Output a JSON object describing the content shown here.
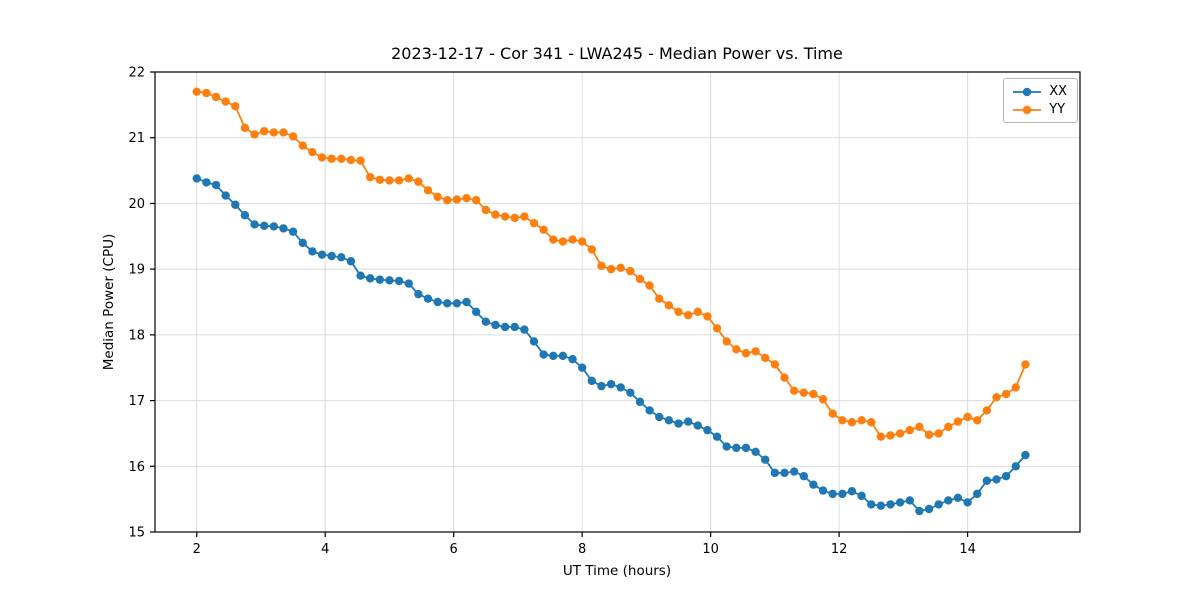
{
  "chart_data": {
    "type": "line",
    "title": "2023-12-17 - Cor 341 - LWA245 - Median Power vs. Time",
    "xlabel": "UT Time (hours)",
    "ylabel": "Median Power (CPU)",
    "xlim": [
      1.35,
      15.75
    ],
    "ylim": [
      15,
      22
    ],
    "xticks": [
      2,
      4,
      6,
      8,
      10,
      12,
      14
    ],
    "yticks": [
      15,
      16,
      17,
      18,
      19,
      20,
      21,
      22
    ],
    "grid": true,
    "legend_position": "upper right",
    "x": [
      2,
      2.15,
      2.3,
      2.45,
      2.6,
      2.75,
      2.9,
      3.05,
      3.2,
      3.35,
      3.5,
      3.65,
      3.8,
      3.95,
      4.1,
      4.25,
      4.4,
      4.55,
      4.7,
      4.85,
      5,
      5.15,
      5.3,
      5.45,
      5.6,
      5.75,
      5.9,
      6.05,
      6.2,
      6.35,
      6.5,
      6.65,
      6.8,
      6.95,
      7.1,
      7.25,
      7.4,
      7.55,
      7.7,
      7.85,
      8,
      8.15,
      8.3,
      8.45,
      8.6,
      8.75,
      8.9,
      9.05,
      9.2,
      9.35,
      9.5,
      9.65,
      9.8,
      9.95,
      10.1,
      10.25,
      10.4,
      10.55,
      10.7,
      10.85,
      11,
      11.15,
      11.3,
      11.45,
      11.6,
      11.75,
      11.9,
      12.05,
      12.2,
      12.35,
      12.5,
      12.65,
      12.8,
      12.95,
      13.1,
      13.25,
      13.4,
      13.55,
      13.7,
      13.85,
      14,
      14.15,
      14.3,
      14.45,
      14.6,
      14.75,
      14.9
    ],
    "series": [
      {
        "name": "XX",
        "color": "#1f77b4",
        "values": [
          20.38,
          20.32,
          20.28,
          20.12,
          19.98,
          19.82,
          19.68,
          19.66,
          19.65,
          19.62,
          19.57,
          19.4,
          19.27,
          19.22,
          19.2,
          19.18,
          19.12,
          18.9,
          18.86,
          18.84,
          18.83,
          18.82,
          18.78,
          18.62,
          18.55,
          18.5,
          18.48,
          18.48,
          18.5,
          18.35,
          18.2,
          18.15,
          18.12,
          18.12,
          18.08,
          17.9,
          17.7,
          17.68,
          17.68,
          17.63,
          17.5,
          17.3,
          17.22,
          17.25,
          17.2,
          17.12,
          16.98,
          16.85,
          16.75,
          16.7,
          16.65,
          16.68,
          16.62,
          16.55,
          16.45,
          16.3,
          16.28,
          16.28,
          16.22,
          16.1,
          15.9,
          15.9,
          15.92,
          15.85,
          15.72,
          15.63,
          15.58,
          15.58,
          15.62,
          15.55,
          15.42,
          15.4,
          15.42,
          15.45,
          15.48,
          15.32,
          15.35,
          15.42,
          15.48,
          15.52,
          15.45,
          15.58,
          15.78,
          15.8,
          15.85,
          16.0,
          16.17
        ]
      },
      {
        "name": "YY",
        "color": "#ff7f0e",
        "values": [
          21.7,
          21.68,
          21.62,
          21.55,
          21.48,
          21.15,
          21.05,
          21.1,
          21.08,
          21.08,
          21.02,
          20.88,
          20.78,
          20.7,
          20.68,
          20.68,
          20.66,
          20.65,
          20.4,
          20.36,
          20.35,
          20.35,
          20.38,
          20.33,
          20.2,
          20.1,
          20.05,
          20.06,
          20.08,
          20.05,
          19.9,
          19.83,
          19.8,
          19.78,
          19.8,
          19.7,
          19.6,
          19.45,
          19.42,
          19.45,
          19.42,
          19.3,
          19.05,
          19.0,
          19.02,
          18.97,
          18.85,
          18.75,
          18.55,
          18.45,
          18.35,
          18.3,
          18.35,
          18.28,
          18.1,
          17.9,
          17.78,
          17.72,
          17.75,
          17.65,
          17.55,
          17.35,
          17.15,
          17.12,
          17.1,
          17.02,
          16.8,
          16.7,
          16.67,
          16.7,
          16.67,
          16.45,
          16.47,
          16.5,
          16.55,
          16.6,
          16.48,
          16.5,
          16.6,
          16.68,
          16.75,
          16.7,
          16.85,
          17.05,
          17.1,
          17.2,
          17.55
        ]
      }
    ]
  }
}
